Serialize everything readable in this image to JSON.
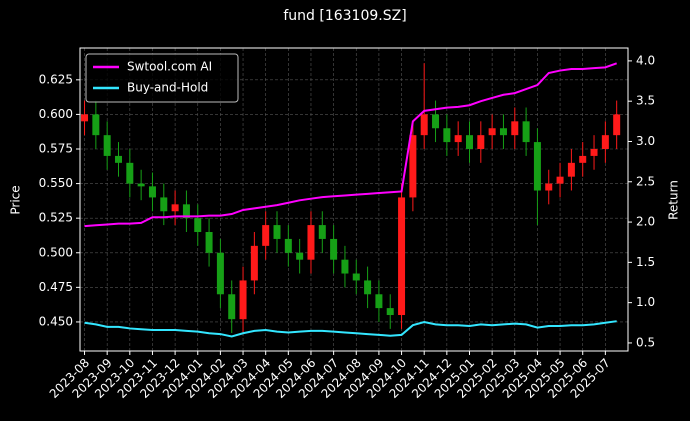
{
  "chart_data": {
    "type": "candlestick",
    "title": "fund [163109.SZ]",
    "ylabel": "Price",
    "y2label": "Return",
    "x": [
      0,
      0.5,
      1,
      1.5,
      2,
      2.5,
      3,
      3.5,
      4,
      4.5,
      5,
      5.5,
      6,
      6.5,
      7,
      7.5,
      8,
      8.5,
      9,
      9.5,
      10,
      10.5,
      11,
      11.5,
      12,
      12.5,
      13,
      13.5,
      14,
      14.5,
      15,
      15.5,
      16,
      16.5,
      17,
      17.5,
      18,
      18.5,
      19,
      19.5,
      20,
      20.5,
      21,
      21.5,
      22,
      22.5,
      23,
      23.5
    ],
    "ohlc": {
      "up_color": "#ff1a1a",
      "down_color": "#16a016",
      "open": [
        0.595,
        0.6,
        0.585,
        0.57,
        0.565,
        0.55,
        0.548,
        0.54,
        0.53,
        0.535,
        0.525,
        0.515,
        0.5,
        0.47,
        0.452,
        0.48,
        0.505,
        0.52,
        0.51,
        0.5,
        0.495,
        0.52,
        0.51,
        0.495,
        0.485,
        0.48,
        0.47,
        0.46,
        0.455,
        0.54,
        0.585,
        0.6,
        0.59,
        0.58,
        0.585,
        0.575,
        0.585,
        0.59,
        0.585,
        0.595,
        0.58,
        0.545,
        0.55,
        0.555,
        0.565,
        0.57,
        0.575,
        0.585
      ],
      "high": [
        0.61,
        0.61,
        0.595,
        0.58,
        0.575,
        0.56,
        0.558,
        0.55,
        0.545,
        0.545,
        0.535,
        0.525,
        0.51,
        0.48,
        0.49,
        0.515,
        0.53,
        0.53,
        0.52,
        0.51,
        0.53,
        0.53,
        0.52,
        0.505,
        0.495,
        0.49,
        0.48,
        0.47,
        0.55,
        0.595,
        0.637,
        0.61,
        0.6,
        0.595,
        0.595,
        0.595,
        0.6,
        0.6,
        0.605,
        0.605,
        0.59,
        0.56,
        0.565,
        0.575,
        0.58,
        0.585,
        0.595,
        0.61
      ],
      "low": [
        0.585,
        0.575,
        0.56,
        0.555,
        0.54,
        0.538,
        0.53,
        0.52,
        0.52,
        0.515,
        0.505,
        0.49,
        0.46,
        0.442,
        0.442,
        0.47,
        0.495,
        0.5,
        0.49,
        0.485,
        0.485,
        0.5,
        0.485,
        0.475,
        0.47,
        0.46,
        0.45,
        0.445,
        0.445,
        0.53,
        0.575,
        0.58,
        0.57,
        0.57,
        0.565,
        0.565,
        0.575,
        0.575,
        0.575,
        0.57,
        0.52,
        0.535,
        0.54,
        0.545,
        0.555,
        0.56,
        0.565,
        0.575
      ],
      "close": [
        0.6,
        0.585,
        0.57,
        0.565,
        0.55,
        0.548,
        0.54,
        0.53,
        0.535,
        0.525,
        0.515,
        0.5,
        0.47,
        0.452,
        0.48,
        0.505,
        0.52,
        0.51,
        0.5,
        0.495,
        0.52,
        0.51,
        0.495,
        0.485,
        0.48,
        0.47,
        0.46,
        0.455,
        0.54,
        0.585,
        0.6,
        0.59,
        0.58,
        0.585,
        0.575,
        0.585,
        0.59,
        0.585,
        0.595,
        0.58,
        0.545,
        0.55,
        0.555,
        0.565,
        0.57,
        0.575,
        0.585,
        0.6
      ]
    },
    "series": [
      {
        "name": "Swtool.com AI",
        "color": "#ff00ff",
        "axis": "y2",
        "values": [
          1.95,
          1.96,
          1.97,
          1.98,
          1.98,
          1.99,
          2.06,
          2.06,
          2.07,
          2.07,
          2.07,
          2.08,
          2.08,
          2.1,
          2.15,
          2.17,
          2.19,
          2.21,
          2.24,
          2.27,
          2.29,
          2.31,
          2.32,
          2.33,
          2.34,
          2.35,
          2.36,
          2.37,
          2.38,
          3.25,
          3.38,
          3.4,
          3.42,
          3.43,
          3.45,
          3.5,
          3.54,
          3.58,
          3.6,
          3.65,
          3.7,
          3.85,
          3.88,
          3.9,
          3.9,
          3.91,
          3.92,
          3.97
        ]
      },
      {
        "name": "Buy-and-Hold",
        "color": "#33e6ff",
        "axis": "y2",
        "values": [
          0.75,
          0.73,
          0.7,
          0.7,
          0.68,
          0.67,
          0.66,
          0.66,
          0.66,
          0.65,
          0.64,
          0.62,
          0.61,
          0.58,
          0.62,
          0.65,
          0.66,
          0.64,
          0.63,
          0.64,
          0.65,
          0.65,
          0.64,
          0.63,
          0.62,
          0.61,
          0.6,
          0.59,
          0.6,
          0.72,
          0.76,
          0.73,
          0.72,
          0.72,
          0.71,
          0.73,
          0.72,
          0.73,
          0.74,
          0.73,
          0.69,
          0.71,
          0.71,
          0.72,
          0.72,
          0.73,
          0.75,
          0.77
        ]
      }
    ],
    "xlim": [
      -0.2,
      24
    ],
    "ylim": [
      0.429,
      0.648
    ],
    "y2lim": [
      0.4,
      4.16
    ],
    "xticks": [
      {
        "value": 0,
        "label": "2023-08"
      },
      {
        "value": 1,
        "label": "2023-09"
      },
      {
        "value": 2,
        "label": "2023-10"
      },
      {
        "value": 3,
        "label": "2023-11"
      },
      {
        "value": 4,
        "label": "2023-12"
      },
      {
        "value": 5,
        "label": "2024-01"
      },
      {
        "value": 6,
        "label": "2024-02"
      },
      {
        "value": 7,
        "label": "2024-03"
      },
      {
        "value": 8,
        "label": "2024-04"
      },
      {
        "value": 9,
        "label": "2024-05"
      },
      {
        "value": 10,
        "label": "2024-06"
      },
      {
        "value": 11,
        "label": "2024-07"
      },
      {
        "value": 12,
        "label": "2024-08"
      },
      {
        "value": 13,
        "label": "2024-09"
      },
      {
        "value": 14,
        "label": "2024-10"
      },
      {
        "value": 15,
        "label": "2024-11"
      },
      {
        "value": 16,
        "label": "2024-12"
      },
      {
        "value": 17,
        "label": "2025-01"
      },
      {
        "value": 18,
        "label": "2025-02"
      },
      {
        "value": 19,
        "label": "2025-03"
      },
      {
        "value": 20,
        "label": "2025-04"
      },
      {
        "value": 21,
        "label": "2025-05"
      },
      {
        "value": 22,
        "label": "2025-06"
      },
      {
        "value": 23,
        "label": "2025-07"
      }
    ],
    "yticks": [
      {
        "value": 0.45,
        "label": "0.450"
      },
      {
        "value": 0.475,
        "label": "0.475"
      },
      {
        "value": 0.5,
        "label": "0.500"
      },
      {
        "value": 0.525,
        "label": "0.525"
      },
      {
        "value": 0.55,
        "label": "0.550"
      },
      {
        "value": 0.575,
        "label": "0.575"
      },
      {
        "value": 0.6,
        "label": "0.600"
      },
      {
        "value": 0.625,
        "label": "0.625"
      }
    ],
    "y2ticks": [
      {
        "value": 0.5,
        "label": "0.5"
      },
      {
        "value": 1,
        "label": "1.0"
      },
      {
        "value": 1.5,
        "label": "1.5"
      },
      {
        "value": 2,
        "label": "2.0"
      },
      {
        "value": 2.5,
        "label": "2.5"
      },
      {
        "value": 3,
        "label": "3.0"
      },
      {
        "value": 3.5,
        "label": "3.5"
      },
      {
        "value": 4,
        "label": "4.0"
      }
    ],
    "grid": true,
    "legend": "upper left"
  }
}
